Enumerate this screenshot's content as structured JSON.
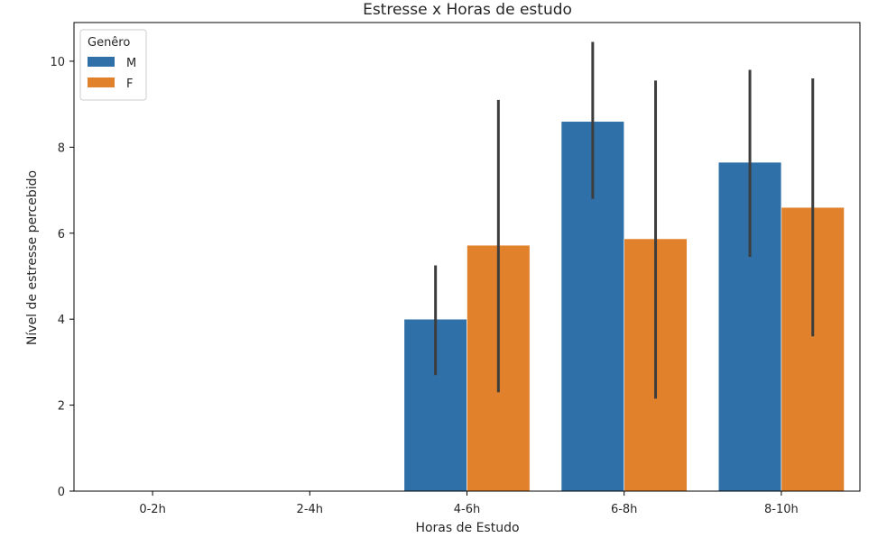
{
  "chart_data": {
    "type": "bar",
    "title": "Estresse x Horas de estudo",
    "xlabel": "Horas de Estudo",
    "ylabel": "Nível de estresse percebido",
    "categories": [
      "0-2h",
      "2-4h",
      "4-6h",
      "6-8h",
      "8-10h"
    ],
    "ylim": [
      0,
      10.9
    ],
    "yticks": [
      0,
      2,
      4,
      6,
      8,
      10
    ],
    "grid": false,
    "legend": {
      "title": "Genêro",
      "placement": "top-left"
    },
    "series": [
      {
        "name": "M",
        "color": "#2f70a9",
        "values": [
          null,
          null,
          4.0,
          8.6,
          7.65
        ],
        "error_low": [
          null,
          null,
          2.7,
          6.8,
          5.45
        ],
        "error_high": [
          null,
          null,
          5.25,
          10.45,
          9.8
        ]
      },
      {
        "name": "F",
        "color": "#e1812c",
        "values": [
          null,
          null,
          5.72,
          5.87,
          6.6
        ],
        "error_low": [
          null,
          null,
          2.3,
          2.15,
          3.6
        ],
        "error_high": [
          null,
          null,
          9.1,
          9.55,
          9.6
        ]
      }
    ],
    "error_bar_color": "#3d3d3d"
  }
}
